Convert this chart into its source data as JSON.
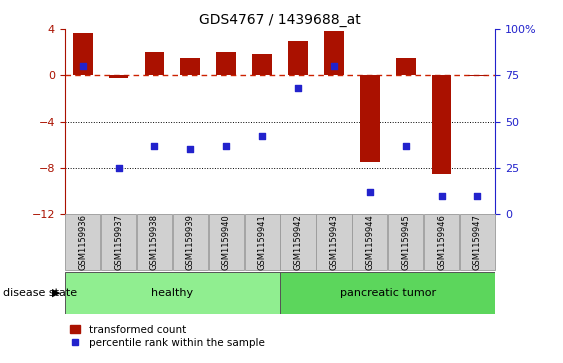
{
  "title": "GDS4767 / 1439688_at",
  "samples": [
    "GSM1159936",
    "GSM1159937",
    "GSM1159938",
    "GSM1159939",
    "GSM1159940",
    "GSM1159941",
    "GSM1159942",
    "GSM1159943",
    "GSM1159944",
    "GSM1159945",
    "GSM1159946",
    "GSM1159947"
  ],
  "bar_values": [
    3.7,
    -0.2,
    2.0,
    1.5,
    2.0,
    1.8,
    3.0,
    3.8,
    -7.5,
    1.5,
    -8.5,
    -0.1
  ],
  "dot_percentile": [
    80,
    25,
    37,
    35,
    37,
    42,
    68,
    80,
    12,
    37,
    10,
    10
  ],
  "bar_color": "#AA1100",
  "dot_color": "#2222CC",
  "hline_color": "#CC2200",
  "grid_color": "#000000",
  "ylim_left": [
    -12,
    4
  ],
  "ylim_right": [
    0,
    100
  ],
  "yticks_left": [
    4,
    0,
    -4,
    -8,
    -12
  ],
  "yticks_right": [
    100,
    75,
    50,
    25,
    0
  ],
  "hline_y": 0,
  "dotted_lines": [
    -4,
    -8
  ],
  "group_healthy_label": "healthy",
  "group_tumor_label": "pancreatic tumor",
  "group_healthy_color": "#90EE90",
  "group_tumor_color": "#5CD65C",
  "disease_label": "disease state",
  "legend_bar_label": "transformed count",
  "legend_dot_label": "percentile rank within the sample",
  "right_axis_color": "#2222CC",
  "left_axis_color": "#AA1100",
  "bar_width": 0.55,
  "n_healthy": 6,
  "n_tumor": 6
}
